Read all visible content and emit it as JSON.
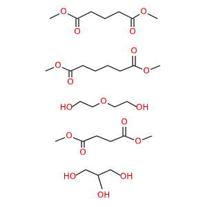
{
  "molecules": [
    {
      "atoms": [
        "O",
        "O",
        "O",
        "O"
      ]
    },
    {
      "atoms": [
        "O",
        "O",
        "O",
        "O"
      ]
    },
    {
      "atoms": [
        "HO",
        "O",
        "OH"
      ]
    },
    {
      "atoms": [
        "O",
        "O",
        "O",
        "O"
      ]
    },
    {
      "atoms": [
        "HO",
        "OH",
        "OH"
      ]
    }
  ]
}
